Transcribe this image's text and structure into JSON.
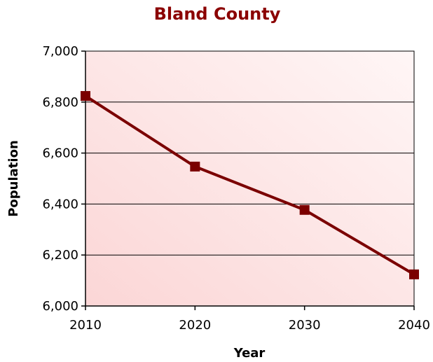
{
  "chart_data": {
    "type": "line",
    "title": "Bland County",
    "xlabel": "Year",
    "ylabel": "Population",
    "categories": [
      "2010",
      "2020",
      "2030",
      "2040"
    ],
    "series": [
      {
        "values": [
          6824,
          6547,
          6377,
          6124
        ]
      }
    ],
    "ylim": [
      6000,
      7000
    ],
    "yticks": [
      "6,000",
      "6,200",
      "6,400",
      "6,600",
      "6,800",
      "7,000"
    ],
    "grid": true,
    "colors": {
      "title": "#8b0000",
      "line": "#7b0000",
      "marker": "#7b0000",
      "plot_bg_light": "#fff5f5",
      "plot_bg_dark": "#fbd9d9"
    }
  }
}
